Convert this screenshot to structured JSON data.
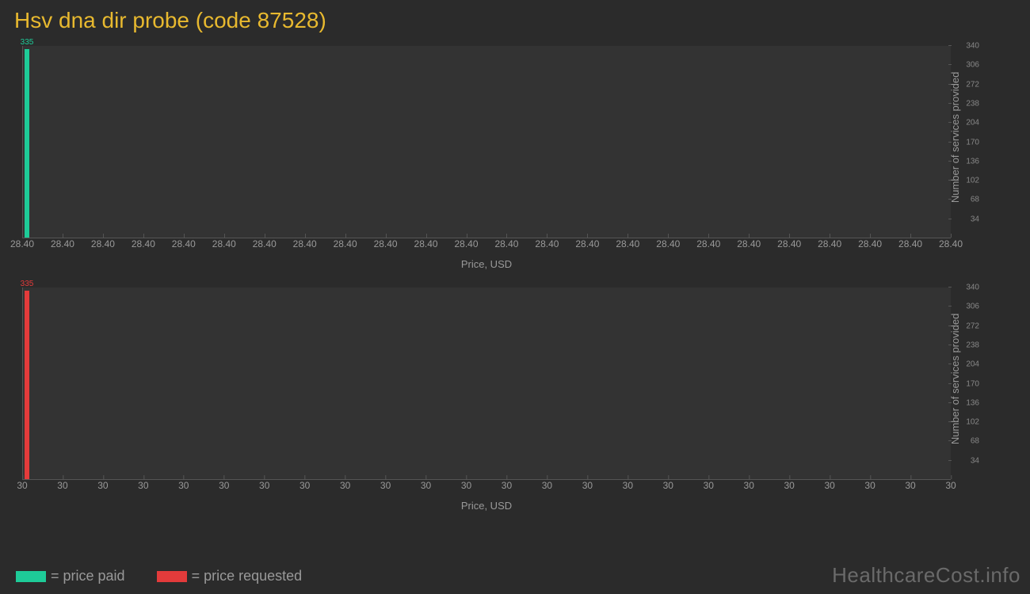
{
  "title": "Hsv dna dir probe (code 87528)",
  "colors": {
    "background": "#2b2b2b",
    "plot_bg": "#333333",
    "title": "#e8b92f",
    "axis_text": "#999999",
    "tick_text": "#888888",
    "grid": "#555555",
    "price_paid": "#1ecb98",
    "price_requested": "#e33b3b",
    "watermark": "#6a6a6a"
  },
  "chart1": {
    "type": "bar",
    "series_color_key": "price_paid",
    "bar_value": 335,
    "bar_value_label": "335",
    "bar_x_index": 0,
    "x_tick_label": "28.40",
    "x_tick_count": 24,
    "xlabel": "Price, USD",
    "ylabel": "Number of services provided",
    "ylim_max": 340,
    "ytick_step": 34,
    "yticks": [
      34,
      68,
      102,
      136,
      170,
      204,
      238,
      272,
      306,
      340
    ]
  },
  "chart2": {
    "type": "bar",
    "series_color_key": "price_requested",
    "bar_value": 335,
    "bar_value_label": "335",
    "bar_x_index": 0,
    "x_tick_label": "30",
    "x_tick_count": 24,
    "xlabel": "Price, USD",
    "ylabel": "Number of services provided",
    "ylim_max": 340,
    "ytick_step": 34,
    "yticks": [
      34,
      68,
      102,
      136,
      170,
      204,
      238,
      272,
      306,
      340
    ]
  },
  "legend": {
    "paid_label": "= price paid",
    "requested_label": "= price requested"
  },
  "watermark": "HealthcareCost.info"
}
